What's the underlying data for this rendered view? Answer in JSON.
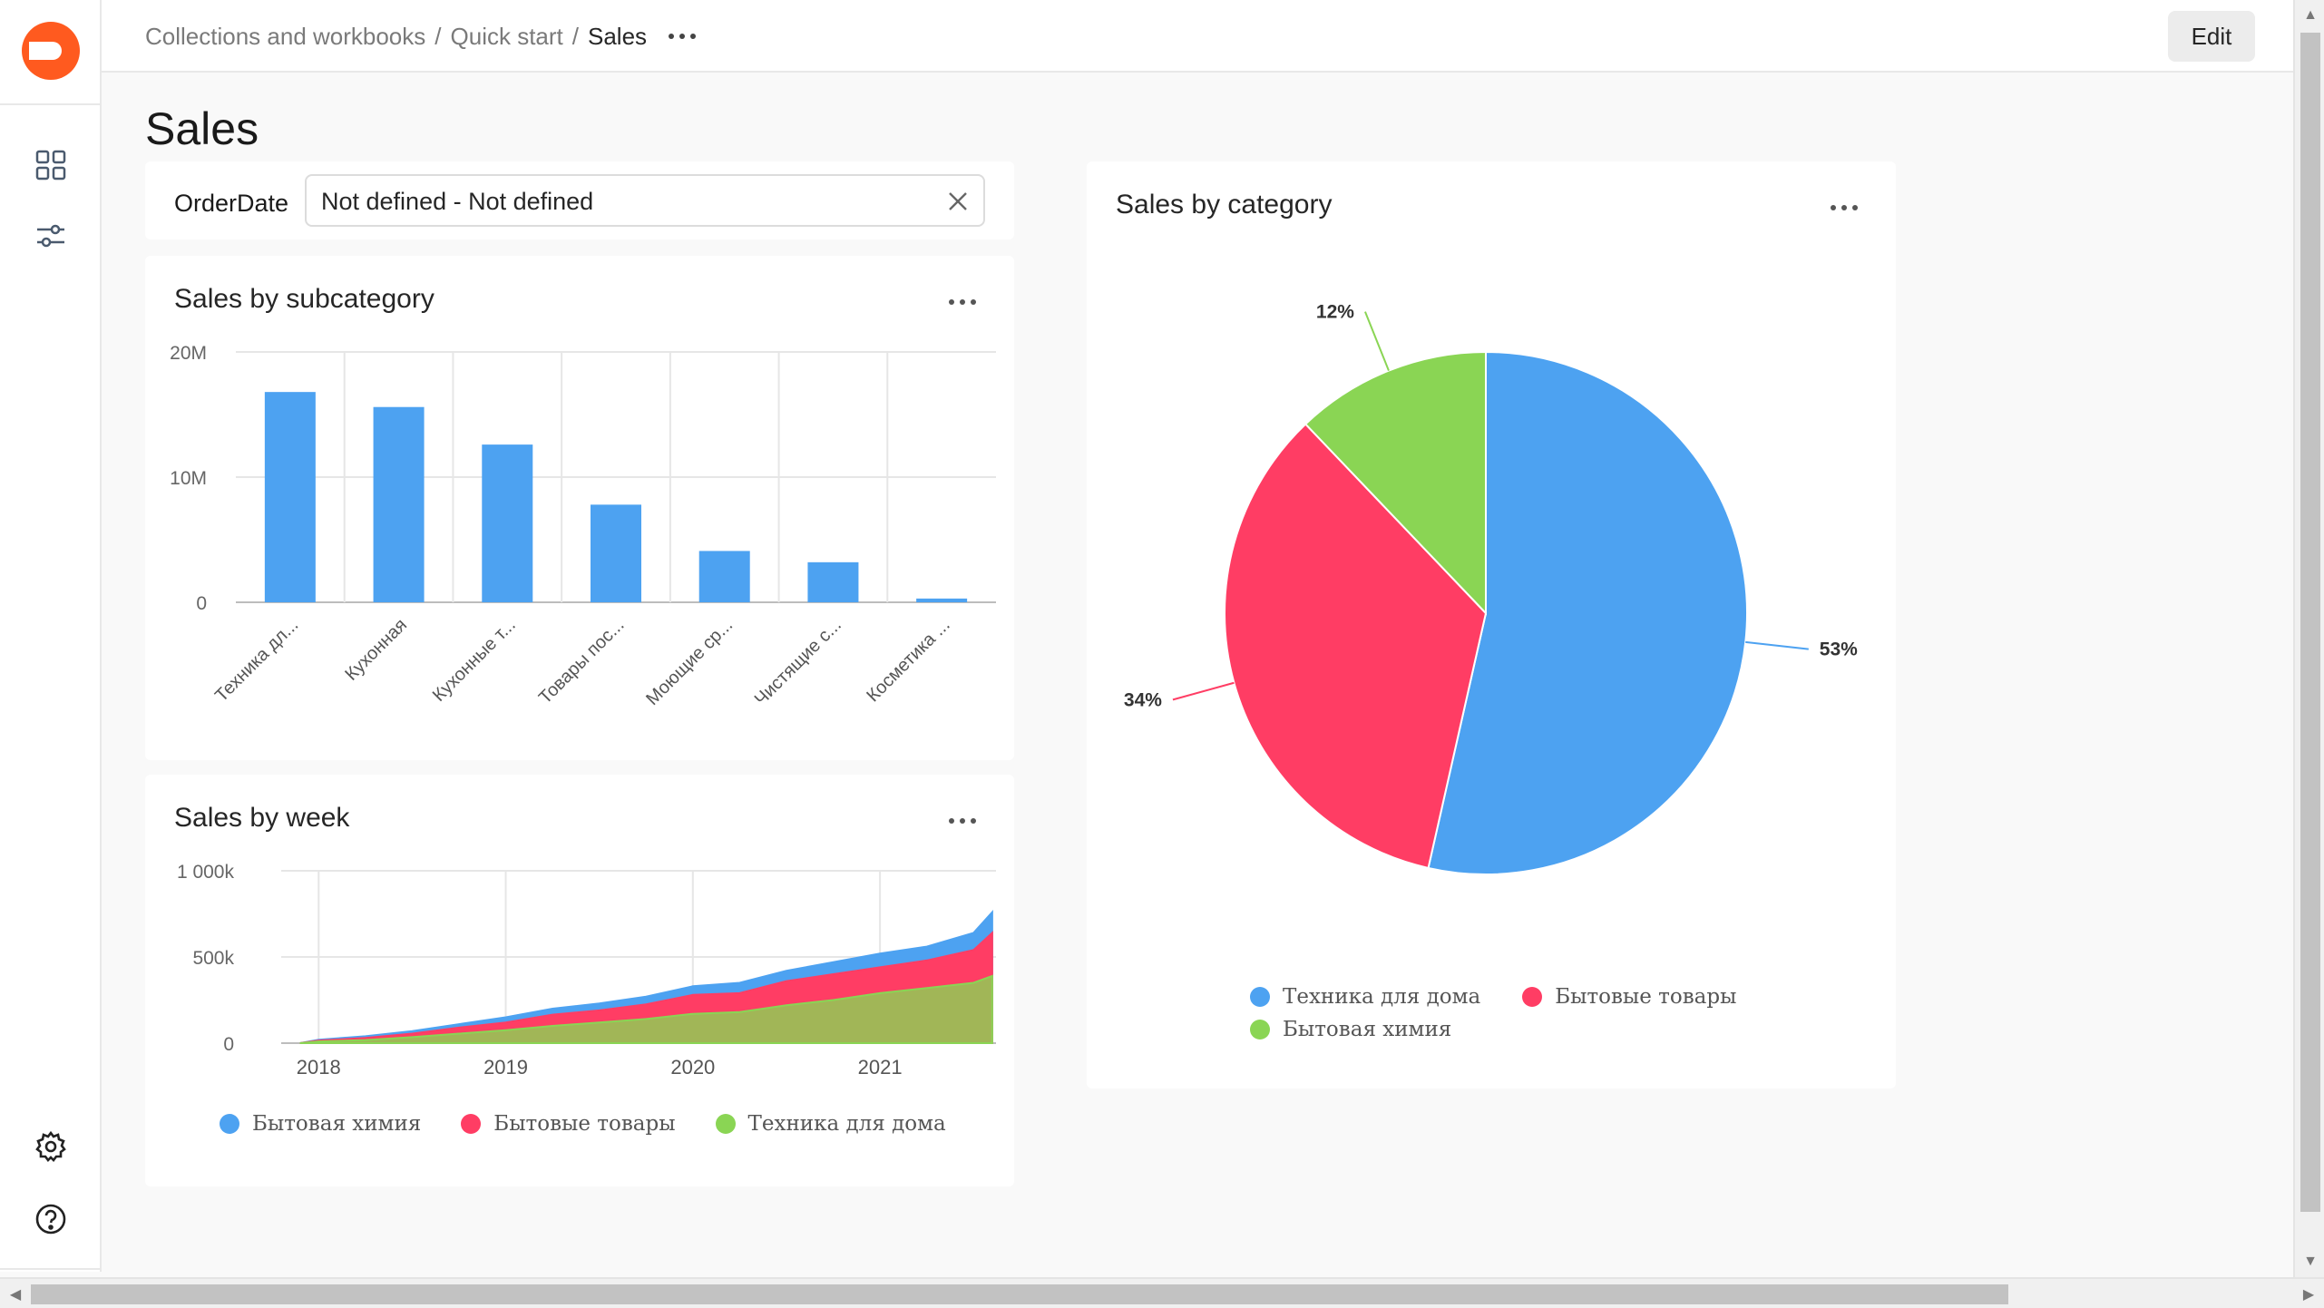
{
  "header": {
    "breadcrumbs": [
      "Collections and workbooks",
      "Quick start"
    ],
    "current": "Sales",
    "edit_label": "Edit"
  },
  "sidebar": {
    "items": [
      {
        "icon": "dashboard-grid-icon"
      },
      {
        "icon": "sliders-icon"
      },
      {
        "icon": "gear-icon"
      },
      {
        "icon": "help-icon"
      }
    ]
  },
  "page": {
    "title": "Sales"
  },
  "filter": {
    "label": "OrderDate",
    "value": "Not defined - Not defined"
  },
  "charts": {
    "subcategory_title": "Sales by subcategory",
    "week_title": "Sales by week",
    "category_title": "Sales by category"
  },
  "colors": {
    "blue": "#4da2f1",
    "red": "#ff3d64",
    "green": "#8ad554"
  },
  "chart_data": [
    {
      "id": "subcategory",
      "type": "bar",
      "title": "Sales by subcategory",
      "categories": [
        "Техника дл...",
        "Кухонная",
        "Кухонные т...",
        "Товары пос...",
        "Моющие ср...",
        "Чистящие с...",
        "Косметика ..."
      ],
      "values": [
        16.8,
        15.6,
        12.6,
        7.8,
        4.1,
        3.2,
        0.3
      ],
      "y_ticks": [
        "0",
        "10M",
        "20M"
      ],
      "ylim": [
        0,
        20
      ],
      "unit": "M",
      "color": "#4da2f1"
    },
    {
      "id": "week",
      "type": "area",
      "title": "Sales by week",
      "x_ticks": [
        "2018",
        "2019",
        "2020",
        "2021"
      ],
      "y_ticks": [
        "0",
        "500k",
        "1 000k"
      ],
      "ylim": [
        0,
        1000
      ],
      "x": [
        2017.9,
        2018.0,
        2018.25,
        2018.5,
        2018.75,
        2019.0,
        2019.25,
        2019.5,
        2019.75,
        2020.0,
        2020.25,
        2020.5,
        2020.75,
        2021.0,
        2021.25,
        2021.5,
        2021.6
      ],
      "series": [
        {
          "name": "Бытовая химия",
          "color": "#4da2f1",
          "values": [
            0,
            20,
            40,
            70,
            110,
            150,
            200,
            230,
            270,
            330,
            350,
            420,
            470,
            520,
            560,
            640,
            760
          ]
        },
        {
          "name": "Бытовые товары",
          "color": "#ff3d64",
          "values": [
            0,
            15,
            30,
            55,
            90,
            120,
            165,
            190,
            225,
            280,
            290,
            360,
            400,
            440,
            480,
            540,
            640
          ]
        },
        {
          "name": "Техника для дома",
          "color": "#8ad554",
          "values": [
            0,
            10,
            18,
            35,
            55,
            75,
            100,
            120,
            140,
            170,
            180,
            220,
            250,
            290,
            320,
            350,
            390
          ]
        }
      ]
    },
    {
      "id": "category",
      "type": "pie",
      "title": "Sales by category",
      "slices": [
        {
          "name": "Техника для дома",
          "value": 53,
          "label": "53%",
          "color": "#4da2f1"
        },
        {
          "name": "Бытовые товары",
          "value": 34,
          "label": "34%",
          "color": "#ff3d64"
        },
        {
          "name": "Бытовая химия",
          "value": 12,
          "label": "12%",
          "color": "#8ad554"
        }
      ]
    }
  ]
}
